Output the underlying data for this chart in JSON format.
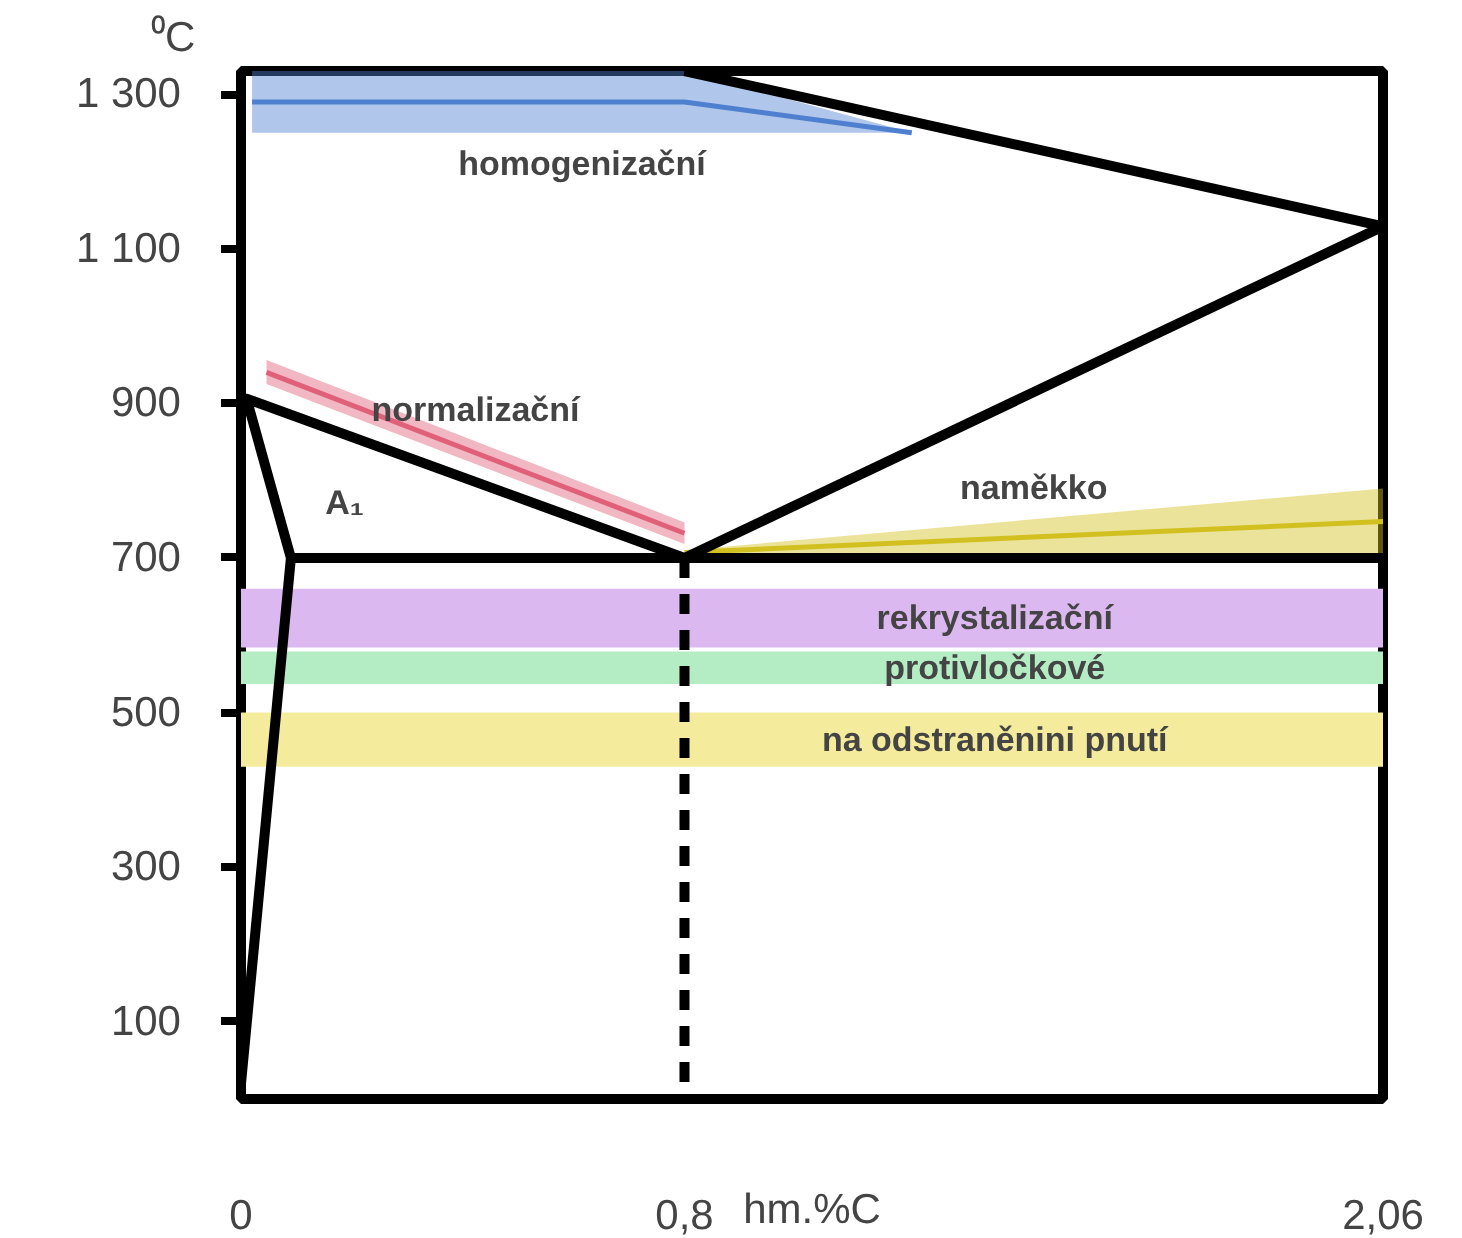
{
  "chart_data": {
    "type": "line",
    "ylabel": "⁰C",
    "xlabel": "hm.%C",
    "xlim": [
      0,
      2.06
    ],
    "ylim": [
      0,
      1330
    ],
    "xticks": [
      0,
      {
        "value": 0.8,
        "label": "0,8"
      },
      {
        "value": 2.06,
        "label": "2,06"
      }
    ],
    "yticks": [
      {
        "value": 100,
        "label": "100"
      },
      {
        "value": 300,
        "label": "300"
      },
      {
        "value": 500,
        "label": "500"
      },
      {
        "value": 700,
        "label": "700"
      },
      {
        "value": 900,
        "label": "900"
      },
      {
        "value": 1100,
        "label": "1 100"
      },
      {
        "value": 1300,
        "label": "1 300"
      }
    ],
    "grid": false,
    "series": [
      {
        "name": "homogenizační",
        "color": "#4f80d0",
        "x": [
          0.02,
          0.8,
          1.21
        ],
        "values": [
          1290,
          1290,
          1250
        ],
        "lower": [
          1250,
          1250,
          1250
        ],
        "upper": [
          1330,
          1330,
          1250
        ]
      },
      {
        "name": "normalizační",
        "color": "#e0607a",
        "x": [
          0.046,
          0.8
        ],
        "values": [
          940,
          732
        ],
        "lower": [
          925,
          718
        ],
        "upper": [
          956,
          746
        ]
      },
      {
        "name": "naměkko",
        "color": "#d2c020",
        "x": [
          0.8,
          2.06
        ],
        "values": [
          707,
          747
        ],
        "lower": [
          705,
          705
        ],
        "upper": [
          710,
          790
        ]
      },
      {
        "color": "#000000",
        "x": [
          0.0,
          0.09,
          0.01,
          0.8,
          2.06,
          0.8
        ],
        "values": [
          20,
          700,
          906,
          700,
          1129,
          1330
        ]
      },
      {
        "name": "A₁",
        "color": "#000000",
        "x": [
          0.09,
          2.06
        ],
        "values": [
          700,
          700
        ]
      },
      {
        "color": "#000000",
        "line_style": "dashed",
        "x": [
          0.8,
          0.8
        ],
        "values": [
          700,
          0
        ]
      }
    ],
    "bands": [
      {
        "axis": "y",
        "from": 584,
        "to": 660,
        "label": "rekrystalizační",
        "color": "#dcb8f0"
      },
      {
        "axis": "y",
        "from": 537,
        "to": 579,
        "label": "protivločkové",
        "color": "#b4ecc4"
      },
      {
        "axis": "y",
        "from": 430,
        "to": 500,
        "label": "na odstraněnini pnutí",
        "color": "#f4ec9c"
      }
    ]
  }
}
